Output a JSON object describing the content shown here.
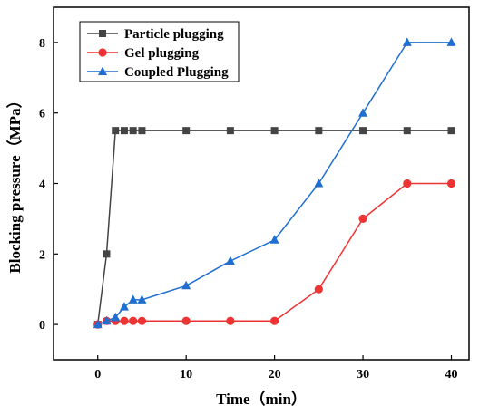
{
  "chart_data": {
    "type": "line",
    "xlabel": "Time（min）",
    "ylabel": "Blocking pressure（MPa）",
    "xlim": [
      -5,
      42
    ],
    "ylim": [
      -1,
      9
    ],
    "xticks": [
      0,
      10,
      20,
      30,
      40
    ],
    "yticks": [
      0,
      2,
      4,
      6,
      8
    ],
    "grid": false,
    "legend_position": "top-left",
    "series": [
      {
        "name": "Particle plugging",
        "color": "#444444",
        "marker": "square",
        "x": [
          0,
          1,
          2,
          3,
          4,
          5,
          10,
          15,
          20,
          25,
          30,
          35,
          40
        ],
        "y": [
          0,
          2,
          5.5,
          5.5,
          5.5,
          5.5,
          5.5,
          5.5,
          5.5,
          5.5,
          5.5,
          5.5,
          5.5
        ]
      },
      {
        "name": "Gel plugging",
        "color": "#ee3333",
        "marker": "circle",
        "x": [
          0,
          1,
          2,
          3,
          4,
          5,
          10,
          15,
          20,
          25,
          30,
          35,
          40
        ],
        "y": [
          0,
          0.1,
          0.1,
          0.1,
          0.1,
          0.1,
          0.1,
          0.1,
          0.1,
          1,
          3,
          4,
          4
        ]
      },
      {
        "name": "Coupled Plugging",
        "color": "#1f6fd1",
        "marker": "triangle",
        "x": [
          0,
          1,
          2,
          3,
          4,
          5,
          10,
          15,
          20,
          25,
          30,
          35,
          40
        ],
        "y": [
          0,
          0.1,
          0.2,
          0.5,
          0.7,
          0.7,
          1.1,
          1.8,
          2.4,
          4,
          6,
          8,
          8
        ]
      }
    ]
  }
}
